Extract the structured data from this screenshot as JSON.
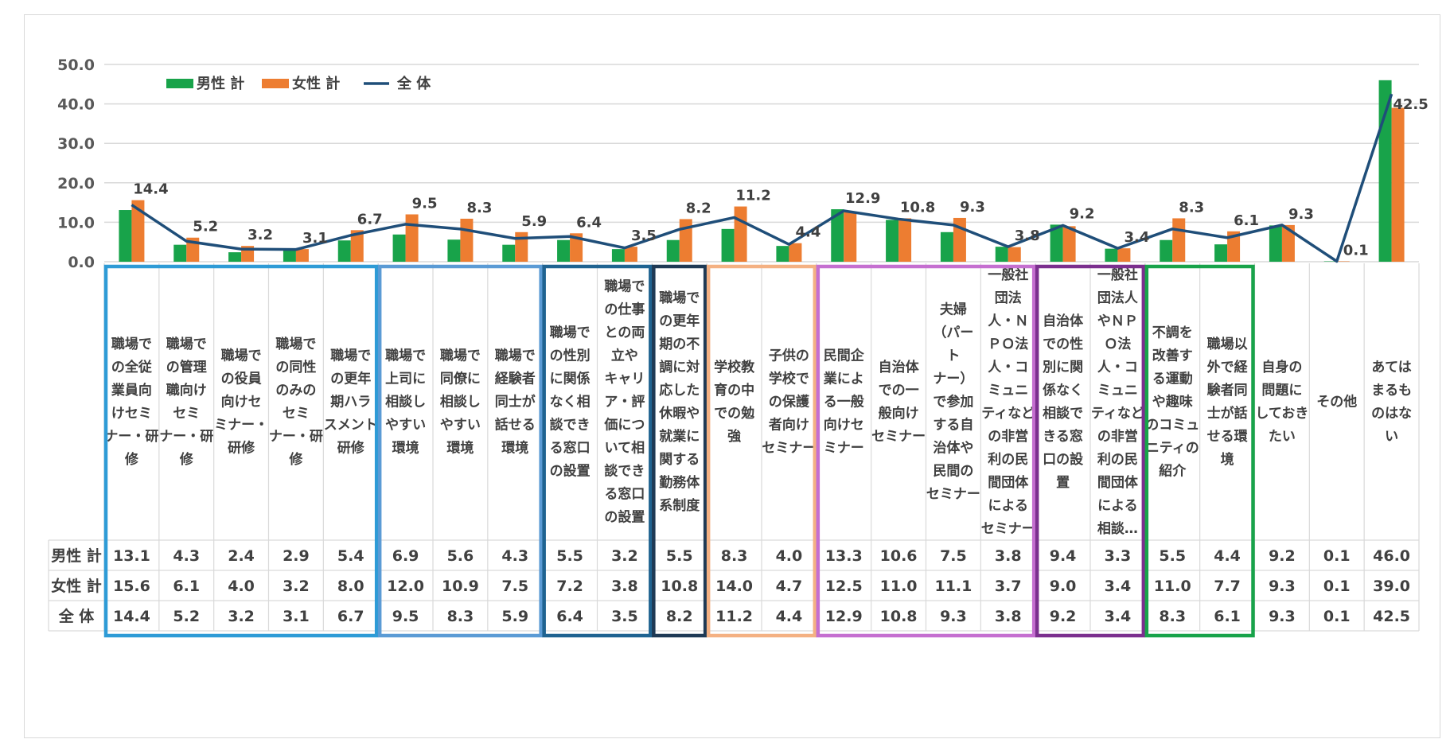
{
  "chart_data": {
    "type": "bar",
    "ylim": [
      0,
      50
    ],
    "yticks": [
      "0.0",
      "10.0",
      "20.0",
      "30.0",
      "40.0",
      "50.0"
    ],
    "grid": true,
    "legend_position": "top-left",
    "categories": [
      "職場での全従業員向けセミナー・研修",
      "職場での管理職向けセミナー・研修",
      "職場での役員向けセミナー・研修",
      "職場での同性のみのセミナー・研修",
      "職場での更年期ハラスメント研修",
      "職場で上司に相談しやすい環境",
      "職場で同僚に相談しやすい環境",
      "職場で経験者同士が話せる環境",
      "職場での性別に関係なく相談できる窓口の設置",
      "職場での仕事との両立やキャリア・評価について相談できる窓口の設置",
      "職場での更年期の不調に対応した休暇や就業に関する勤務体系制度",
      "学校教育の中での勉強",
      "子供の学校での保護者向けセミナー",
      "民間企業による一般向けセミナー",
      "自治体での一般向けセミナー",
      "夫婦（パートナー）で参加する自治体や民間のセミナー",
      "一般社団法人・ＮＰＯ法人・コミュニティなどの非営利の民間団体によるセミナー",
      "自治体での性別に関係なく相談できる窓口の設置",
      "一般社団法人やＮＰＯ法人・コミュニティなどの非営利の民間団体による相談…",
      "不調を改善する運動や趣味のコミュニティの紹介",
      "職場以外で経験者同士が話せる環境",
      "自身の問題にしておきたい",
      "その他",
      "あてはまるものはない"
    ],
    "category_lines": [
      [
        "職場で",
        "の全従",
        "業員向",
        "けセミ",
        "ナー・研",
        "修"
      ],
      [
        "職場で",
        "の管理",
        "職向け",
        "セミ",
        "ナー・研",
        "修"
      ],
      [
        "職場で",
        "の役員",
        "向けセ",
        "ミナー・",
        "研修"
      ],
      [
        "職場で",
        "の同性",
        "のみの",
        "セミ",
        "ナー・研",
        "修"
      ],
      [
        "職場で",
        "の更年",
        "期ハラ",
        "スメント",
        "研修"
      ],
      [
        "職場で",
        "上司に",
        "相談し",
        "やすい",
        "環境"
      ],
      [
        "職場で",
        "同僚に",
        "相談し",
        "やすい",
        "環境"
      ],
      [
        "職場で",
        "経験者",
        "同士が",
        "話せる",
        "環境"
      ],
      [
        "職場で",
        "の性別",
        "に関係",
        "なく相",
        "談でき",
        "る窓口",
        "の設置"
      ],
      [
        "職場で",
        "の仕事",
        "との両",
        "立や",
        "キャリ",
        "ア・評",
        "価につ",
        "いて相",
        "談でき",
        "る窓口",
        "の設置"
      ],
      [
        "職場で",
        "の更年",
        "期の不",
        "調に対",
        "応した",
        "休暇や",
        "就業に",
        "関する",
        "勤務体",
        "系制度"
      ],
      [
        "学校教",
        "育の中",
        "での勉",
        "強"
      ],
      [
        "子供の",
        "学校で",
        "の保護",
        "者向け",
        "セミナー"
      ],
      [
        "民間企",
        "業によ",
        "る一般",
        "向けセ",
        "ミナー"
      ],
      [
        "自治体",
        "での一",
        "般向け",
        "セミナー"
      ],
      [
        "夫婦",
        "（パー",
        "ト",
        "ナー）",
        "で参加",
        "する自",
        "治体や",
        "民間の",
        "セミナー"
      ],
      [
        "一般社",
        "団法",
        "人・Ｎ",
        "ＰＯ法",
        "人・コ",
        "ミュニ",
        "ティなど",
        "の非営",
        "利の民",
        "間団体",
        "による",
        "セミナー"
      ],
      [
        "自治体",
        "での性",
        "別に関",
        "係なく",
        "相談で",
        "きる窓",
        "口の設",
        "置"
      ],
      [
        "一般社",
        "団法人",
        "やＮＰ",
        "Ｏ法",
        "人・コ",
        "ミュニ",
        "ティなど",
        "の非営",
        "利の民",
        "間団体",
        "による",
        "相談…"
      ],
      [
        "不調を",
        "改善す",
        "る運動",
        "や趣味",
        "のコミュ",
        "ニティの",
        "紹介"
      ],
      [
        "職場以",
        "外で経",
        "験者同",
        "士が話",
        "せる環",
        "境"
      ],
      [
        "自身の",
        "問題に",
        "しておき",
        "たい"
      ],
      [
        "その他"
      ],
      [
        "あては",
        "まるも",
        "のはな",
        "い"
      ]
    ],
    "series": [
      {
        "name": "男性 計",
        "row_label": "男性 計",
        "color": "#18a34a",
        "values": [
          13.1,
          4.3,
          2.4,
          2.9,
          5.4,
          6.9,
          5.6,
          4.3,
          5.5,
          3.2,
          5.5,
          8.3,
          4.0,
          13.3,
          10.6,
          7.5,
          3.8,
          9.4,
          3.3,
          5.5,
          4.4,
          9.2,
          0.1,
          46.0
        ],
        "display": [
          "13.1",
          "4.3",
          "2.4",
          "2.9",
          "5.4",
          "6.9",
          "5.6",
          "4.3",
          "5.5",
          "3.2",
          "5.5",
          "8.3",
          "4.0",
          "13.3",
          "10.6",
          "7.5",
          "3.8",
          "9.4",
          "3.3",
          "5.5",
          "4.4",
          "9.2",
          "0.1",
          "46.0"
        ]
      },
      {
        "name": "女性 計",
        "row_label": "女性 計",
        "color": "#ed7d31",
        "values": [
          15.6,
          6.1,
          4.0,
          3.2,
          8.0,
          12.0,
          10.9,
          7.5,
          7.2,
          3.8,
          10.8,
          14.0,
          4.7,
          12.5,
          11.0,
          11.1,
          3.7,
          9.0,
          3.4,
          11.0,
          7.7,
          9.3,
          0.1,
          39.0
        ],
        "display": [
          "15.6",
          "6.1",
          "4.0",
          "3.2",
          "8.0",
          "12.0",
          "10.9",
          "7.5",
          "7.2",
          "3.8",
          "10.8",
          "14.0",
          "4.7",
          "12.5",
          "11.0",
          "11.1",
          "3.7",
          "9.0",
          "3.4",
          "11.0",
          "7.7",
          "9.3",
          "0.1",
          "39.0"
        ]
      },
      {
        "name": "全 体",
        "row_label": "全 体",
        "color": "#1f4e79",
        "kind": "line",
        "values": [
          14.4,
          5.2,
          3.2,
          3.1,
          6.7,
          9.5,
          8.3,
          5.9,
          6.4,
          3.5,
          8.2,
          11.2,
          4.4,
          12.9,
          10.8,
          9.3,
          3.8,
          9.2,
          3.4,
          8.3,
          6.1,
          9.3,
          0.1,
          42.5
        ],
        "display": [
          "14.4",
          "5.2",
          "3.2",
          "3.1",
          "6.7",
          "9.5",
          "8.3",
          "5.9",
          "6.4",
          "3.5",
          "8.2",
          "11.2",
          "4.4",
          "12.9",
          "10.8",
          "9.3",
          "3.8",
          "9.2",
          "3.4",
          "8.3",
          "6.1",
          "9.3",
          "0.1",
          "42.5"
        ]
      }
    ],
    "group_colors": [
      "#2e9bd6",
      "#5b9bd5",
      "#1f6391",
      "#1f3a55",
      "#f4b183",
      "#c56fd0",
      "#7b2f8e",
      "#18a34a"
    ]
  }
}
